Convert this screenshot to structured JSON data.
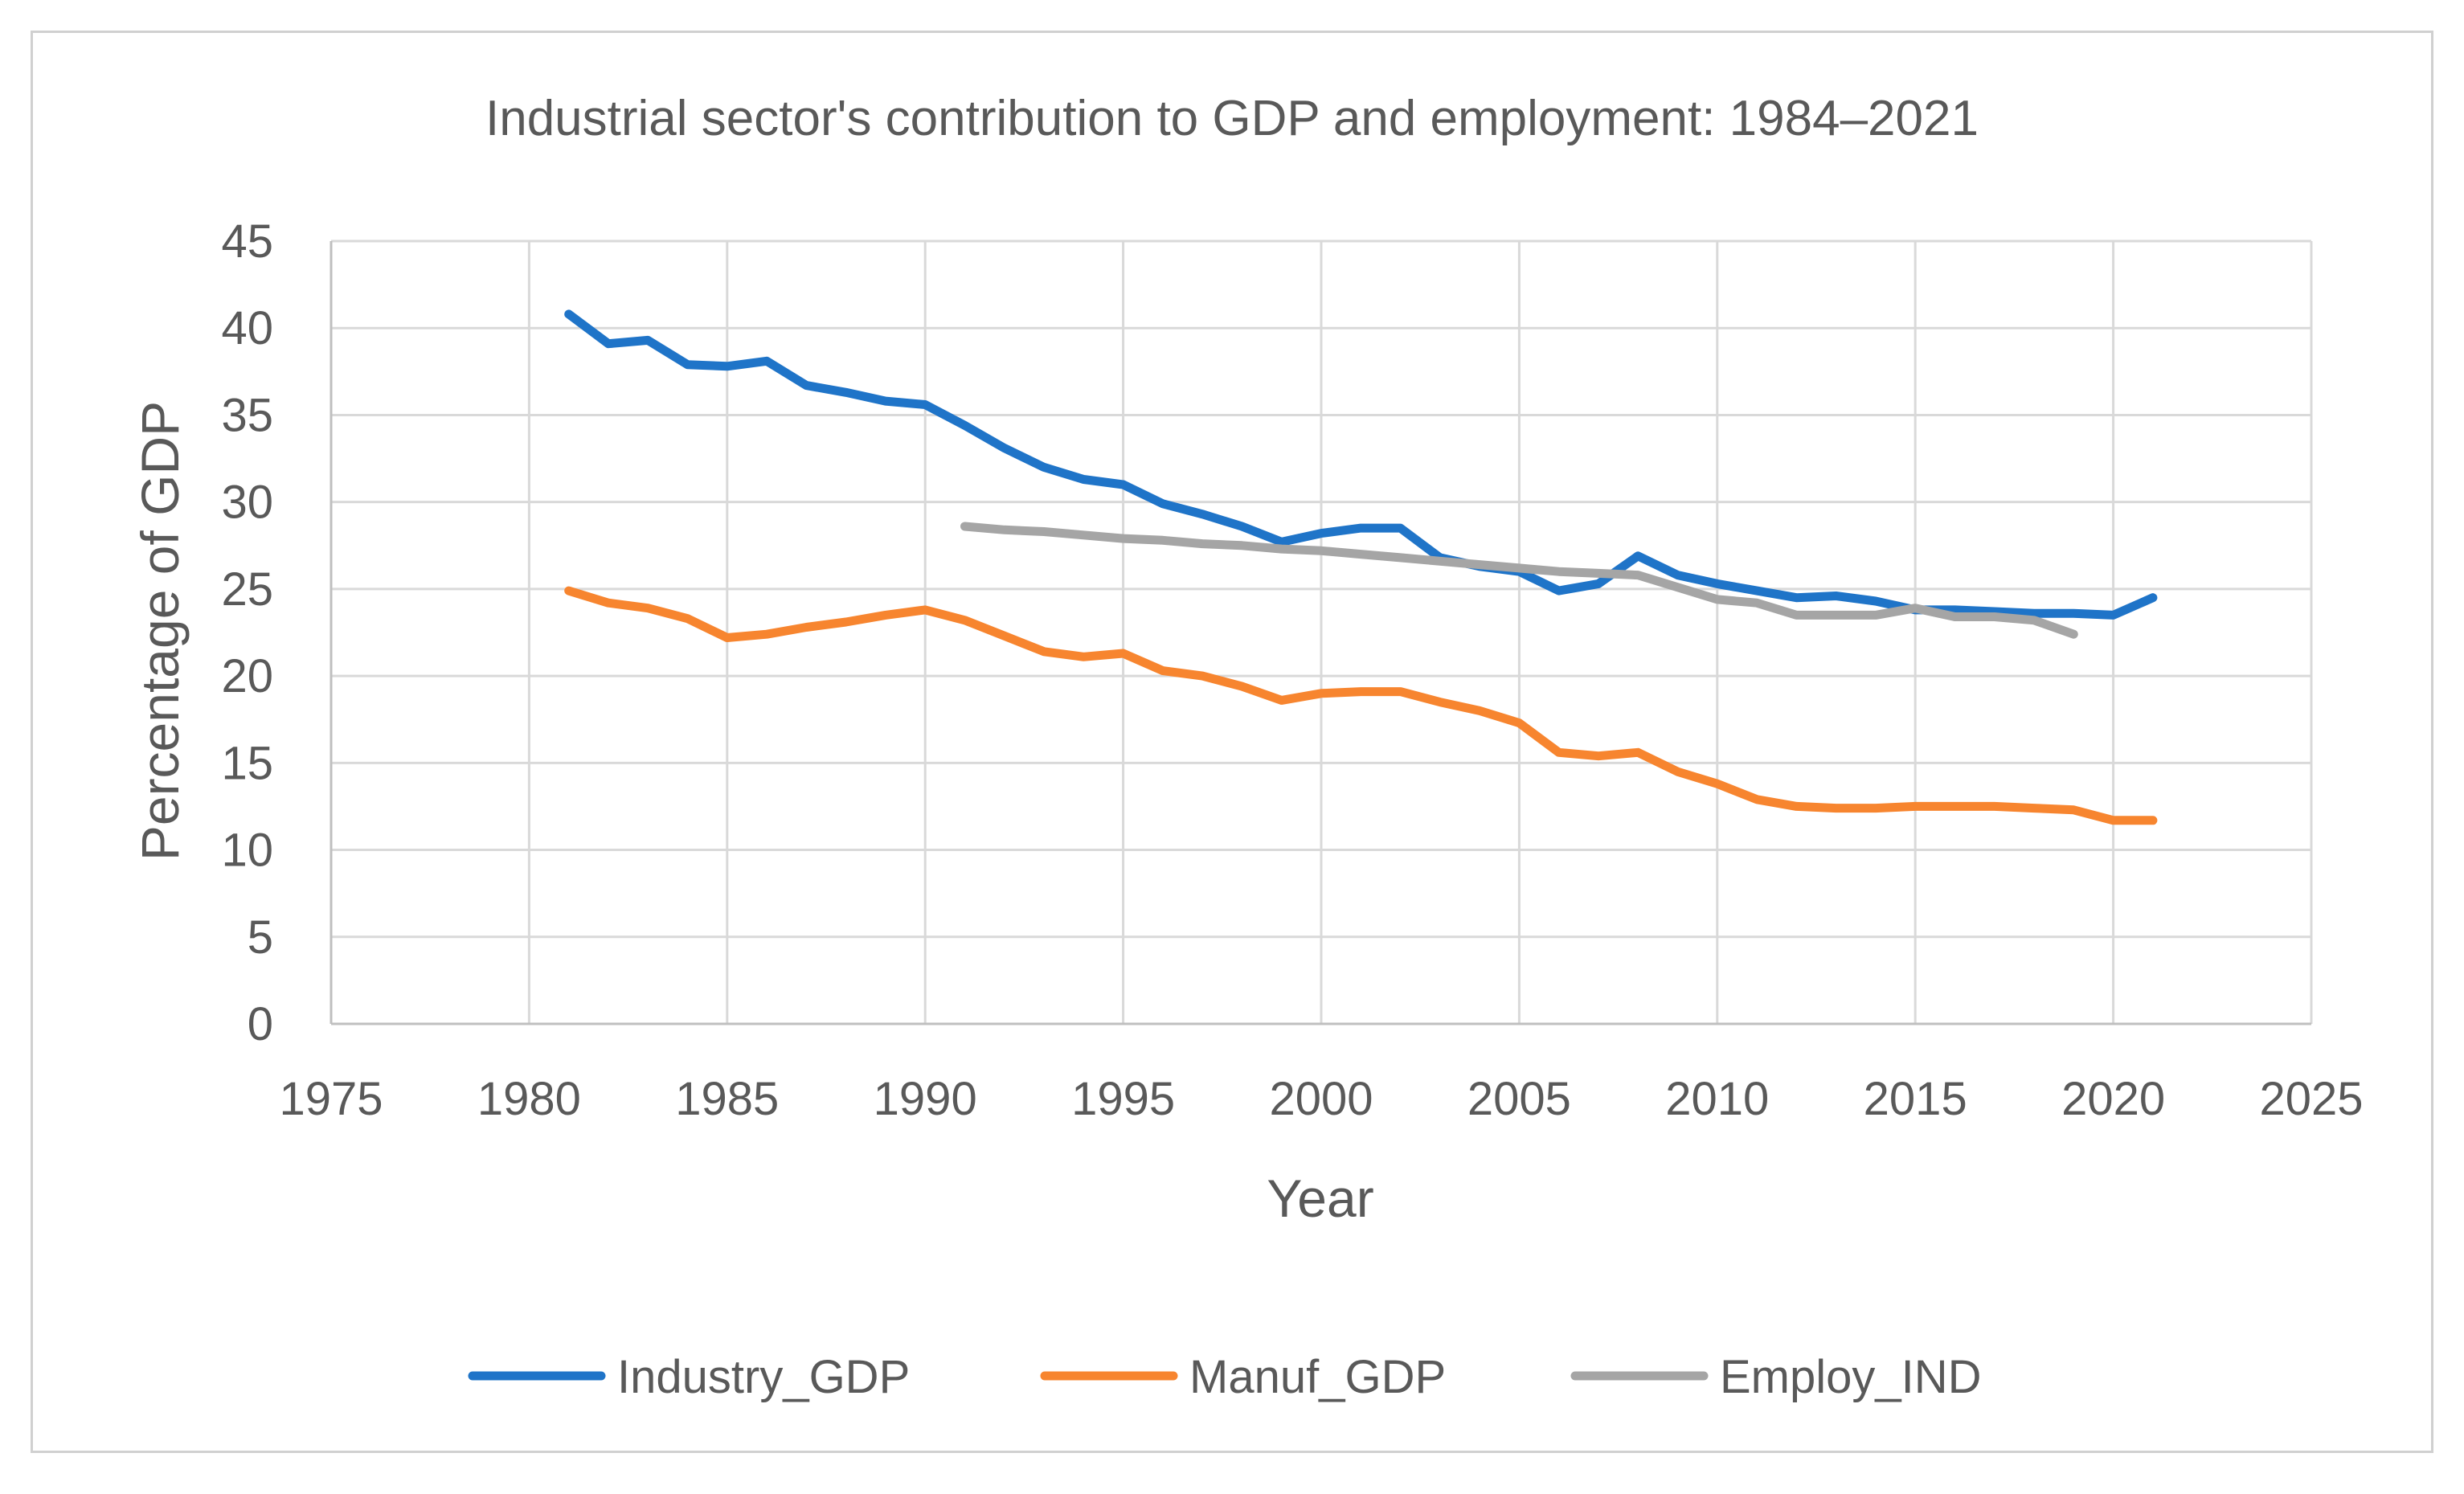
{
  "chart_data": {
    "type": "line",
    "title": "Industrial sector's contribution to GDP and employment: 1984–2021",
    "xlabel": "Year",
    "ylabel": "Percentage of GDP",
    "xlim": [
      1975,
      2025
    ],
    "ylim": [
      0,
      45
    ],
    "x_ticks": [
      1975,
      1980,
      1985,
      1990,
      1995,
      2000,
      2005,
      2010,
      2015,
      2020,
      2025
    ],
    "y_ticks": [
      0,
      5,
      10,
      15,
      20,
      25,
      30,
      35,
      40,
      45
    ],
    "grid": true,
    "legend_position": "bottom",
    "series": [
      {
        "name": "Industry_GDP",
        "color": "#1f74c8",
        "x": [
          1981,
          1982,
          1983,
          1984,
          1985,
          1986,
          1987,
          1988,
          1989,
          1990,
          1991,
          1992,
          1993,
          1994,
          1995,
          1996,
          1997,
          1998,
          1999,
          2000,
          2001,
          2002,
          2003,
          2004,
          2005,
          2006,
          2007,
          2008,
          2009,
          2010,
          2011,
          2012,
          2013,
          2014,
          2015,
          2016,
          2017,
          2018,
          2019,
          2020,
          2021
        ],
        "values": [
          40.8,
          39.1,
          39.3,
          37.9,
          37.8,
          38.1,
          36.7,
          36.3,
          35.8,
          35.6,
          34.4,
          33.1,
          32.0,
          31.3,
          31.0,
          29.9,
          29.3,
          28.6,
          27.7,
          28.2,
          28.5,
          28.5,
          26.8,
          26.3,
          26.0,
          24.9,
          25.3,
          26.9,
          25.8,
          25.3,
          24.9,
          24.5,
          24.6,
          24.3,
          23.8,
          23.8,
          23.7,
          23.6,
          23.6,
          23.5,
          24.5
        ]
      },
      {
        "name": "Manuf_GDP",
        "color": "#f7852f",
        "x": [
          1981,
          1982,
          1983,
          1984,
          1985,
          1986,
          1987,
          1988,
          1989,
          1990,
          1991,
          1992,
          1993,
          1994,
          1995,
          1996,
          1997,
          1998,
          1999,
          2000,
          2001,
          2002,
          2003,
          2004,
          2005,
          2006,
          2007,
          2008,
          2009,
          2010,
          2011,
          2012,
          2013,
          2014,
          2015,
          2016,
          2017,
          2018,
          2019,
          2020,
          2021
        ],
        "values": [
          24.9,
          24.2,
          23.9,
          23.3,
          22.2,
          22.4,
          22.8,
          23.1,
          23.5,
          23.8,
          23.2,
          22.3,
          21.4,
          21.1,
          21.3,
          20.3,
          20.0,
          19.4,
          18.6,
          19.0,
          19.1,
          19.1,
          18.5,
          18.0,
          17.3,
          15.6,
          15.4,
          15.6,
          14.5,
          13.8,
          12.9,
          12.5,
          12.4,
          12.4,
          12.5,
          12.5,
          12.5,
          12.4,
          12.3,
          11.7,
          11.7
        ]
      },
      {
        "name": "Employ_IND",
        "color": "#a5a5a5",
        "x": [
          1991,
          1992,
          1993,
          1994,
          1995,
          1996,
          1997,
          1998,
          1999,
          2000,
          2001,
          2002,
          2003,
          2004,
          2005,
          2006,
          2007,
          2008,
          2009,
          2010,
          2011,
          2012,
          2013,
          2014,
          2015,
          2016,
          2017,
          2018,
          2019
        ],
        "values": [
          28.6,
          28.4,
          28.3,
          28.1,
          27.9,
          27.8,
          27.6,
          27.5,
          27.3,
          27.2,
          27.0,
          26.8,
          26.6,
          26.4,
          26.2,
          26.0,
          25.9,
          25.8,
          25.1,
          24.4,
          24.2,
          23.5,
          23.5,
          23.5,
          23.9,
          23.4,
          23.4,
          23.2,
          22.4
        ]
      }
    ]
  }
}
